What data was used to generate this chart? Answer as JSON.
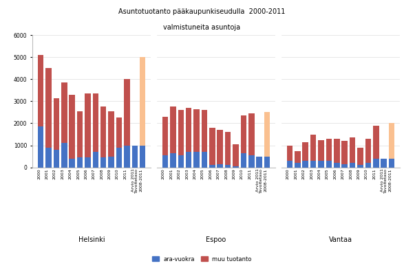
{
  "title_line1": "Asuntotuotanto pääkaupunkiseudulla  2000-2011",
  "title_line2": "valmistuneita asuntoja",
  "ylim": [
    0,
    6000
  ],
  "yticks": [
    0,
    1000,
    2000,
    3000,
    4000,
    5000,
    6000
  ],
  "legend_labels": [
    "ara-vuokra",
    "muu tuotanto"
  ],
  "legend_colors": [
    "#4472c4",
    "#c0504d"
  ],
  "target_color": "#fac090",
  "cities": [
    "Helsinki",
    "Espoo",
    "Vantaa"
  ],
  "helsinki": {
    "years": [
      "2000",
      "2001",
      "2002",
      "2003",
      "2004",
      "2005",
      "2006",
      "2007",
      "2008",
      "2009",
      "2010",
      "2011",
      "Arvio 2011",
      "Tavoitetaso\n2008-2011"
    ],
    "ara": [
      1850,
      900,
      800,
      1100,
      400,
      450,
      450,
      700,
      450,
      500,
      900,
      1000,
      1000,
      1000
    ],
    "muu": [
      3250,
      3600,
      2350,
      2750,
      2900,
      2100,
      2900,
      2650,
      2300,
      2050,
      1350,
      3000,
      0,
      4000
    ],
    "is_target": [
      0,
      0,
      0,
      0,
      0,
      0,
      0,
      0,
      0,
      0,
      0,
      0,
      1,
      1
    ]
  },
  "espoo": {
    "years": [
      "2000",
      "2001",
      "2002",
      "2003",
      "2004",
      "2005",
      "2006",
      "2007",
      "2008",
      "2009",
      "2010",
      "2011",
      "Arvio 2011",
      "Tavoitetaso\n2008-2011"
    ],
    "ara": [
      550,
      650,
      550,
      700,
      700,
      700,
      100,
      150,
      100,
      50,
      650,
      550,
      500,
      500
    ],
    "muu": [
      1750,
      2100,
      2050,
      2000,
      1950,
      1900,
      1700,
      1550,
      1500,
      1000,
      1700,
      1900,
      0,
      2000
    ],
    "is_target": [
      0,
      0,
      0,
      0,
      0,
      0,
      0,
      0,
      0,
      0,
      0,
      0,
      1,
      1
    ]
  },
  "vantaa": {
    "years": [
      "2000",
      "2001",
      "2002",
      "2003",
      "2004",
      "2005",
      "2006",
      "2007",
      "2008",
      "2009",
      "2010",
      "2011",
      "Arvio 2011",
      "Tavoitetaso\n2008-2011"
    ],
    "ara": [
      300,
      200,
      300,
      300,
      300,
      300,
      200,
      150,
      200,
      100,
      200,
      400,
      400,
      400
    ],
    "muu": [
      700,
      550,
      850,
      1200,
      950,
      1000,
      1100,
      1050,
      1150,
      800,
      1100,
      1500,
      0,
      1600
    ],
    "is_target": [
      0,
      0,
      0,
      0,
      0,
      0,
      0,
      0,
      0,
      0,
      0,
      0,
      1,
      1
    ]
  }
}
